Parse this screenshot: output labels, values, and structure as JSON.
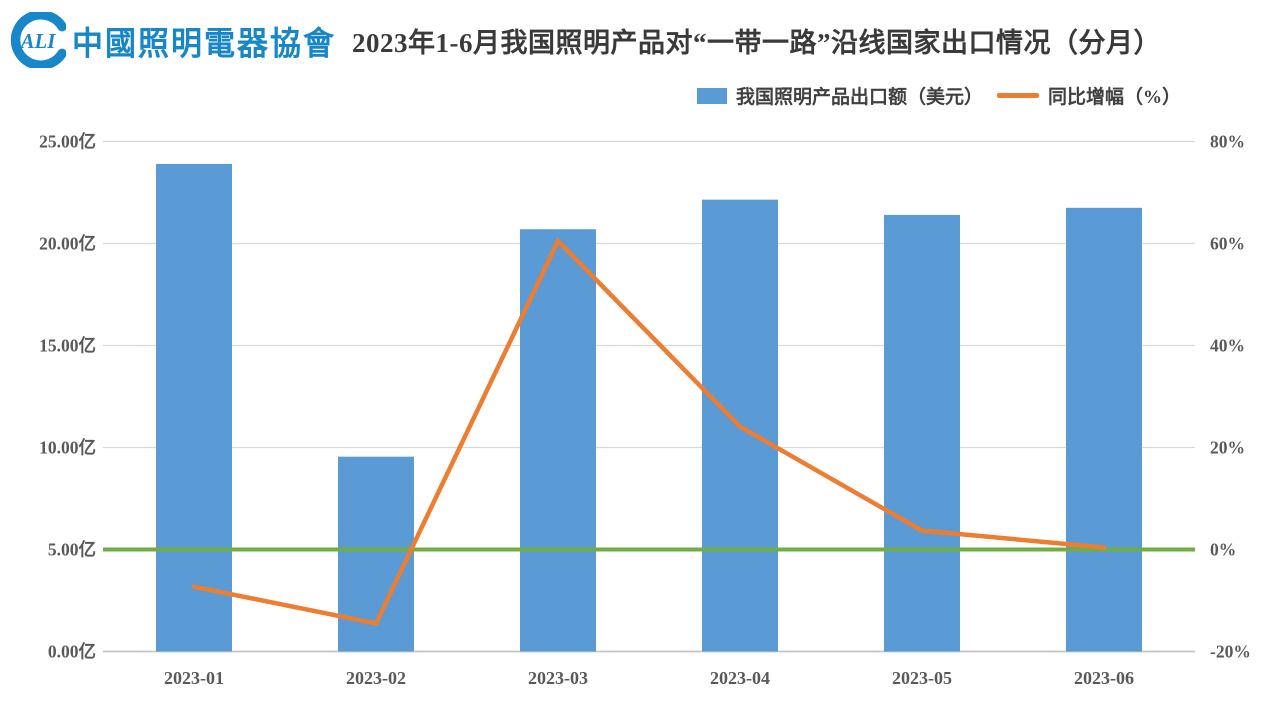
{
  "header": {
    "logo": {
      "acronym": "ALI",
      "org_name": "中國照明電器協會",
      "color": "#1787c9"
    },
    "title": "2023年1-6月我国照明产品对“一带一路”沿线国家出口情况（分月）"
  },
  "legend": [
    {
      "label": "我国照明产品出口额（美元）",
      "swatch": "bar",
      "color": "#5b9bd5"
    },
    {
      "label": "同比增幅（%）",
      "swatch": "line",
      "color": "#ed7d31"
    }
  ],
  "chart_data": {
    "type": "bar+line combo",
    "categories": [
      "2023-01",
      "2023-02",
      "2023-03",
      "2023-04",
      "2023-05",
      "2023-06"
    ],
    "series": [
      {
        "name": "我国照明产品出口额（美元）",
        "type": "bar",
        "axis": "left",
        "unit": "亿",
        "color": "#5b9bd5",
        "values": [
          23.9,
          9.55,
          20.7,
          22.15,
          21.4,
          21.75
        ]
      },
      {
        "name": "同比增幅（%）",
        "type": "line",
        "axis": "right",
        "unit": "%",
        "color": "#ed7d31",
        "values": [
          -7.3,
          -14.5,
          60.5,
          24.1,
          3.7,
          0.4
        ]
      }
    ],
    "left_axis": {
      "min": 0,
      "max": 25,
      "ticks": [
        "0.00亿",
        "5.00亿",
        "10.00亿",
        "15.00亿",
        "20.00亿",
        "25.00亿"
      ]
    },
    "right_axis": {
      "min": -20,
      "max": 80,
      "ticks": [
        "-20%",
        "0%",
        "20%",
        "40%",
        "60%",
        "80%"
      ]
    },
    "zero_line": {
      "axis": "right",
      "value": 0,
      "color": "#70ad47"
    },
    "grid": true,
    "legend_position": "top",
    "colors": {
      "grid": "#d9d9d9",
      "baseline": "#c4c4c4",
      "axis_text": "#595959"
    }
  }
}
